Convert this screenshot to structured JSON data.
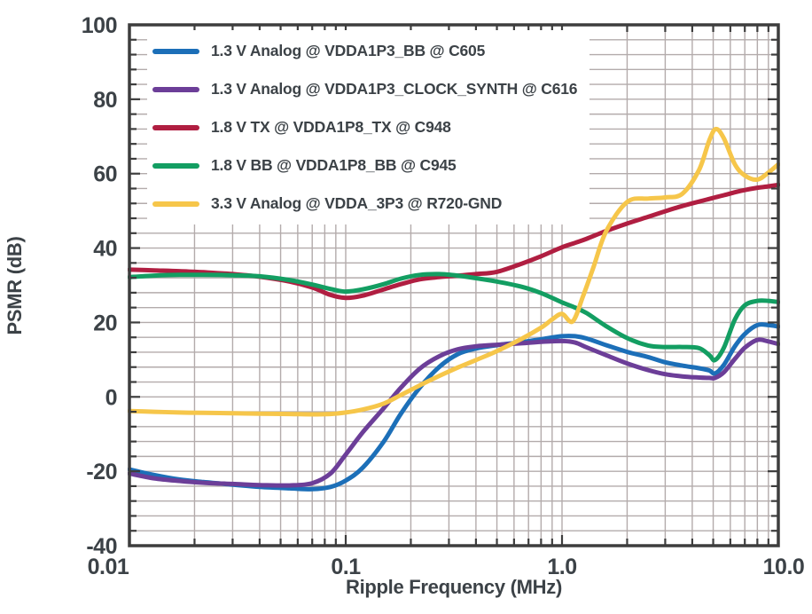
{
  "chart_data": {
    "type": "line",
    "title": "",
    "xlabel": "Ripple Frequency (MHz)",
    "ylabel": "PSMR (dB)",
    "x_scale": "log",
    "xlim": [
      0.01,
      10
    ],
    "ylim": [
      -40,
      100
    ],
    "y_major_step": 20,
    "y_minor_step": 4,
    "grid": true,
    "legend_position": "top-left",
    "colors": {
      "grid": "#b3abab",
      "axis": "#3d3d3d",
      "text": "#3c4247",
      "background": "#ffffff"
    },
    "x_ticks": [
      {
        "value": 0.01,
        "label": "0.01"
      },
      {
        "value": 0.1,
        "label": "0.1"
      },
      {
        "value": 1,
        "label": "1.0"
      },
      {
        "value": 10,
        "label": "10.0"
      }
    ],
    "y_ticks": [
      {
        "value": 100,
        "label": "100"
      },
      {
        "value": 80,
        "label": "80"
      },
      {
        "value": 60,
        "label": "60"
      },
      {
        "value": 40,
        "label": "40"
      },
      {
        "value": 20,
        "label": "20"
      },
      {
        "value": 0,
        "label": "0"
      },
      {
        "value": -20,
        "label": "-20"
      },
      {
        "value": -40,
        "label": "-40"
      }
    ],
    "series": [
      {
        "name": "1.3 V Analog @ VDDA1P3_BB @ C605",
        "color": "#1c6fb8",
        "points": [
          [
            0.01,
            -19.5
          ],
          [
            0.013,
            -21.0
          ],
          [
            0.017,
            -22.2
          ],
          [
            0.022,
            -22.9
          ],
          [
            0.03,
            -23.6
          ],
          [
            0.04,
            -24.2
          ],
          [
            0.055,
            -24.6
          ],
          [
            0.07,
            -24.8
          ],
          [
            0.085,
            -24.2
          ],
          [
            0.1,
            -22.5
          ],
          [
            0.12,
            -19.0
          ],
          [
            0.15,
            -12.0
          ],
          [
            0.18,
            -4.5
          ],
          [
            0.22,
            2.5
          ],
          [
            0.27,
            8.0
          ],
          [
            0.33,
            11.5
          ],
          [
            0.4,
            13.0
          ],
          [
            0.5,
            13.9
          ],
          [
            0.65,
            14.7
          ],
          [
            0.8,
            15.5
          ],
          [
            1.0,
            16.3
          ],
          [
            1.15,
            16.3
          ],
          [
            1.3,
            15.7
          ],
          [
            1.6,
            13.9
          ],
          [
            2.0,
            12.1
          ],
          [
            2.5,
            10.7
          ],
          [
            3.0,
            9.3
          ],
          [
            3.6,
            8.4
          ],
          [
            4.3,
            7.7
          ],
          [
            4.8,
            7.1
          ],
          [
            5.1,
            6.3
          ],
          [
            5.6,
            8.6
          ],
          [
            6.3,
            13.6
          ],
          [
            7.0,
            16.9
          ],
          [
            8.0,
            19.3
          ],
          [
            9.0,
            19.3
          ],
          [
            10.0,
            18.9
          ]
        ]
      },
      {
        "name": "1.3 V Analog @ VDDA1P3_CLOCK_SYNTH @ C616",
        "color": "#6c3e98",
        "points": [
          [
            0.01,
            -20.6
          ],
          [
            0.013,
            -21.9
          ],
          [
            0.017,
            -22.6
          ],
          [
            0.022,
            -23.1
          ],
          [
            0.03,
            -23.4
          ],
          [
            0.04,
            -23.7
          ],
          [
            0.055,
            -23.8
          ],
          [
            0.07,
            -23.2
          ],
          [
            0.085,
            -20.6
          ],
          [
            0.1,
            -15.5
          ],
          [
            0.12,
            -9.5
          ],
          [
            0.15,
            -3.0
          ],
          [
            0.18,
            2.5
          ],
          [
            0.22,
            7.6
          ],
          [
            0.27,
            10.9
          ],
          [
            0.33,
            12.8
          ],
          [
            0.4,
            13.6
          ],
          [
            0.5,
            14.0
          ],
          [
            0.65,
            14.4
          ],
          [
            0.8,
            14.8
          ],
          [
            1.0,
            15.0
          ],
          [
            1.15,
            14.6
          ],
          [
            1.3,
            13.3
          ],
          [
            1.6,
            11.2
          ],
          [
            2.0,
            9.0
          ],
          [
            2.5,
            7.2
          ],
          [
            3.0,
            6.1
          ],
          [
            3.6,
            5.5
          ],
          [
            4.3,
            5.2
          ],
          [
            4.8,
            5.1
          ],
          [
            5.1,
            5.1
          ],
          [
            5.6,
            6.6
          ],
          [
            6.3,
            10.2
          ],
          [
            7.0,
            13.2
          ],
          [
            8.0,
            15.3
          ],
          [
            9.0,
            14.9
          ],
          [
            10.0,
            14.2
          ]
        ]
      },
      {
        "name": "1.8 V TX @ VDDA1P8_TX @ C948",
        "color": "#b01e41",
        "points": [
          [
            0.01,
            34.2
          ],
          [
            0.013,
            34.0
          ],
          [
            0.017,
            33.8
          ],
          [
            0.022,
            33.5
          ],
          [
            0.03,
            33.0
          ],
          [
            0.04,
            32.3
          ],
          [
            0.055,
            31.0
          ],
          [
            0.07,
            29.4
          ],
          [
            0.085,
            27.4
          ],
          [
            0.1,
            26.6
          ],
          [
            0.12,
            27.2
          ],
          [
            0.15,
            28.9
          ],
          [
            0.18,
            30.3
          ],
          [
            0.22,
            31.6
          ],
          [
            0.27,
            32.2
          ],
          [
            0.33,
            32.6
          ],
          [
            0.4,
            33.0
          ],
          [
            0.5,
            33.6
          ],
          [
            0.65,
            35.8
          ],
          [
            0.8,
            37.8
          ],
          [
            1.0,
            40.2
          ],
          [
            1.15,
            41.4
          ],
          [
            1.3,
            42.5
          ],
          [
            1.6,
            44.6
          ],
          [
            2.0,
            46.6
          ],
          [
            2.5,
            48.4
          ],
          [
            3.0,
            49.9
          ],
          [
            3.6,
            51.3
          ],
          [
            4.3,
            52.5
          ],
          [
            4.8,
            53.2
          ],
          [
            5.1,
            53.6
          ],
          [
            5.6,
            54.2
          ],
          [
            6.3,
            55.0
          ],
          [
            7.0,
            55.6
          ],
          [
            8.0,
            56.2
          ],
          [
            9.0,
            56.6
          ],
          [
            10.0,
            57.0
          ]
        ]
      },
      {
        "name": "1.8 V BB @ VDDA1P8_BB @ C945",
        "color": "#139e62",
        "points": [
          [
            0.01,
            32.2
          ],
          [
            0.013,
            32.6
          ],
          [
            0.017,
            32.8
          ],
          [
            0.022,
            32.8
          ],
          [
            0.03,
            32.7
          ],
          [
            0.04,
            32.4
          ],
          [
            0.055,
            31.4
          ],
          [
            0.07,
            30.2
          ],
          [
            0.085,
            29.0
          ],
          [
            0.1,
            28.3
          ],
          [
            0.12,
            28.9
          ],
          [
            0.15,
            30.3
          ],
          [
            0.18,
            31.8
          ],
          [
            0.22,
            32.8
          ],
          [
            0.27,
            33.0
          ],
          [
            0.33,
            32.6
          ],
          [
            0.4,
            31.9
          ],
          [
            0.5,
            31.0
          ],
          [
            0.65,
            29.6
          ],
          [
            0.8,
            27.9
          ],
          [
            1.0,
            25.4
          ],
          [
            1.15,
            24.0
          ],
          [
            1.3,
            22.5
          ],
          [
            1.6,
            19.0
          ],
          [
            2.0,
            15.8
          ],
          [
            2.5,
            13.8
          ],
          [
            3.0,
            13.4
          ],
          [
            3.6,
            13.4
          ],
          [
            4.3,
            13.1
          ],
          [
            4.8,
            11.2
          ],
          [
            5.1,
            9.9
          ],
          [
            5.6,
            13.2
          ],
          [
            6.3,
            20.8
          ],
          [
            7.0,
            24.6
          ],
          [
            8.0,
            25.8
          ],
          [
            9.0,
            25.8
          ],
          [
            10.0,
            25.5
          ]
        ]
      },
      {
        "name": "3.3 V Analog @ VDDA_3P3 @ R720-GND",
        "color": "#f6c64a",
        "points": [
          [
            0.01,
            -3.8
          ],
          [
            0.013,
            -4.0
          ],
          [
            0.017,
            -4.2
          ],
          [
            0.022,
            -4.3
          ],
          [
            0.03,
            -4.4
          ],
          [
            0.04,
            -4.5
          ],
          [
            0.055,
            -4.6
          ],
          [
            0.07,
            -4.7
          ],
          [
            0.085,
            -4.6
          ],
          [
            0.1,
            -4.2
          ],
          [
            0.12,
            -3.4
          ],
          [
            0.15,
            -1.8
          ],
          [
            0.18,
            0.5
          ],
          [
            0.22,
            3.1
          ],
          [
            0.27,
            5.6
          ],
          [
            0.33,
            7.9
          ],
          [
            0.4,
            9.9
          ],
          [
            0.5,
            12.3
          ],
          [
            0.65,
            15.6
          ],
          [
            0.8,
            18.6
          ],
          [
            0.9,
            20.8
          ],
          [
            1.0,
            22.3
          ],
          [
            1.12,
            20.3
          ],
          [
            1.25,
            27.0
          ],
          [
            1.4,
            35.0
          ],
          [
            1.6,
            44.5
          ],
          [
            2.0,
            52.4
          ],
          [
            2.5,
            53.3
          ],
          [
            3.0,
            53.6
          ],
          [
            3.6,
            54.6
          ],
          [
            4.3,
            61.0
          ],
          [
            4.8,
            69.0
          ],
          [
            5.15,
            72.0
          ],
          [
            5.6,
            69.5
          ],
          [
            6.3,
            62.5
          ],
          [
            7.0,
            59.5
          ],
          [
            8.0,
            58.4
          ],
          [
            9.0,
            60.3
          ],
          [
            10.0,
            62.5
          ]
        ]
      }
    ]
  }
}
